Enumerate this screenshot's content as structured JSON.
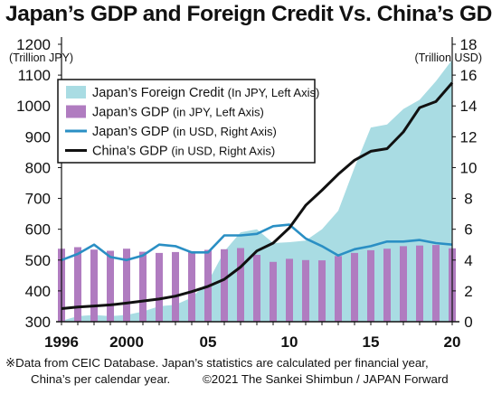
{
  "title": "Japan’s GDP and Foreign Credit Vs. China’s GDP",
  "notes": {
    "line1": "※Data from CEIC Database. Japan’s statistics are calculated per financial year,",
    "line2": "China’s per calendar year.",
    "copyright": "©2021 The Sankei Shimbun / JAPAN Forward"
  },
  "colors": {
    "foreign_credit": "#a9dce3",
    "japan_gdp_jpy": "#b07cc0",
    "japan_gdp_usd": "#2a8fc4",
    "china_gdp": "#111111"
  },
  "chart_data": {
    "type": "bar",
    "x_range": [
      1996,
      2020
    ],
    "x_tick_labels": [
      {
        "year": 1996,
        "label": "1996"
      },
      {
        "year": 2000,
        "label": "2000"
      },
      {
        "year": 2005,
        "label": "05"
      },
      {
        "year": 2010,
        "label": "10"
      },
      {
        "year": 2015,
        "label": "15"
      },
      {
        "year": 2020,
        "label": "20"
      }
    ],
    "y_left": {
      "unit_label": "(Trillion JPY)",
      "range": [
        300,
        1200
      ],
      "ticks": [
        300,
        400,
        500,
        600,
        700,
        800,
        900,
        1000,
        1100,
        1200
      ]
    },
    "y_right": {
      "unit_label": "(Trillion USD)",
      "range": [
        0,
        18
      ],
      "ticks": [
        0,
        2,
        4,
        6,
        8,
        10,
        12,
        14,
        16,
        18
      ]
    },
    "grid": false,
    "legend_position": "top-left",
    "years": [
      1996,
      1997,
      1998,
      1999,
      2000,
      2001,
      2002,
      2003,
      2004,
      2005,
      2006,
      2007,
      2008,
      2009,
      2010,
      2011,
      2012,
      2013,
      2014,
      2015,
      2016,
      2017,
      2018,
      2019,
      2020
    ],
    "series": [
      {
        "name": "Japan’s Foreign Credit",
        "axis_note": "(In JPY, Left Axis)",
        "axis": "left",
        "type": "area",
        "values": [
          303,
          318,
          322,
          318,
          322,
          333,
          350,
          355,
          378,
          430,
          528,
          590,
          600,
          555,
          558,
          563,
          600,
          660,
          800,
          930,
          940,
          990,
          1020,
          1080,
          1150
        ]
      },
      {
        "name": "Japan’s GDP",
        "axis_note": "(in JPY, Left Axis)",
        "axis": "left",
        "type": "bar",
        "values": [
          537,
          542,
          534,
          530,
          537,
          527,
          523,
          526,
          529,
          533,
          535,
          539,
          517,
          494,
          504,
          500,
          499,
          513,
          523,
          532,
          537,
          545,
          547,
          549,
          538
        ]
      },
      {
        "name": "Japan’s GDP",
        "axis_note": "(in USD, Right Axis)",
        "axis": "right",
        "type": "line",
        "values": [
          4.0,
          4.4,
          5.0,
          4.2,
          4.0,
          4.3,
          5.0,
          4.9,
          4.5,
          4.5,
          5.6,
          5.6,
          5.7,
          6.2,
          6.3,
          5.4,
          4.9,
          4.3,
          4.7,
          4.9,
          5.2,
          5.2,
          5.3,
          5.1,
          5.0
        ]
      },
      {
        "name": "China’s GDP",
        "axis_note": "(in USD, Right Axis)",
        "axis": "right",
        "type": "line",
        "values": [
          0.85,
          0.95,
          1.02,
          1.09,
          1.21,
          1.34,
          1.47,
          1.66,
          1.95,
          2.29,
          2.75,
          3.55,
          4.59,
          5.1,
          6.09,
          7.55,
          8.53,
          9.57,
          10.48,
          11.06,
          11.23,
          12.31,
          13.89,
          14.28,
          15.5
        ]
      }
    ]
  }
}
